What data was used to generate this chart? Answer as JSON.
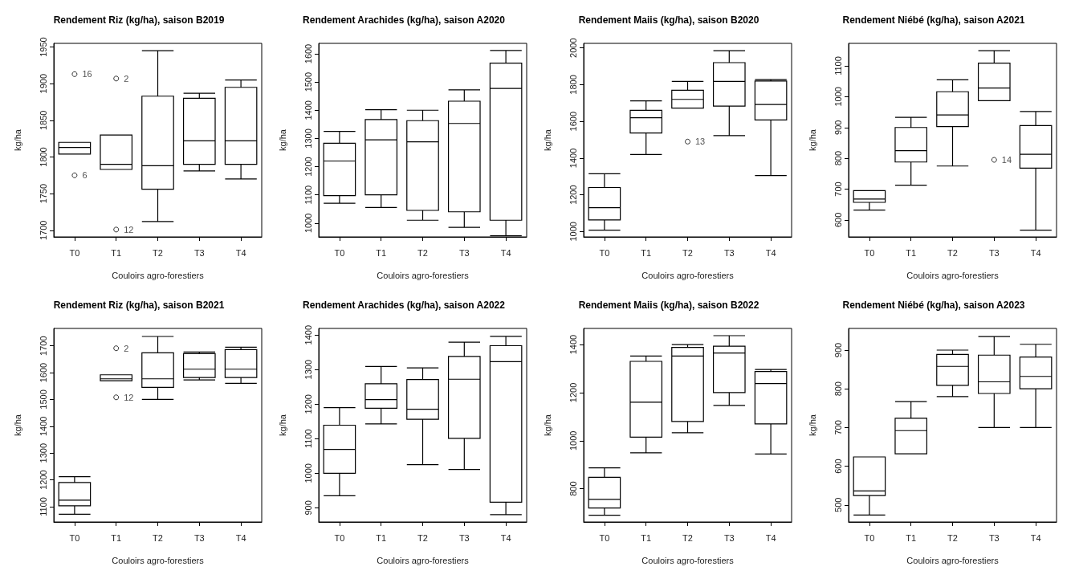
{
  "chart_data": [
    {
      "type": "box",
      "title": "Rendement Riz (kg/ha), saison B2019",
      "xlabel": "Couloirs agro-forestiers",
      "ylabel": "kg/ha",
      "categories": [
        "T0",
        "T1",
        "T2",
        "T3",
        "T4"
      ],
      "ylim": [
        1691,
        1955
      ],
      "yticks": [
        1700,
        1750,
        1800,
        1850,
        1900,
        1950
      ],
      "grid": false,
      "boxes": [
        {
          "low": 1804,
          "q1": 1804,
          "median": 1813,
          "q3": 1820,
          "high": 1820,
          "outliers": [
            1913,
            1775
          ]
        },
        {
          "low": 1783,
          "q1": 1783,
          "median": 1790,
          "q3": 1830,
          "high": 1830,
          "outliers": [
            1907,
            1701
          ]
        },
        {
          "low": 1712,
          "q1": 1756,
          "median": 1788,
          "q3": 1883,
          "high": 1945
        },
        {
          "low": 1781,
          "q1": 1790,
          "median": 1822,
          "q3": 1880,
          "high": 1887
        },
        {
          "low": 1770,
          "q1": 1790,
          "median": 1822,
          "q3": 1895,
          "high": 1905
        }
      ],
      "annotations": [
        "16",
        "6",
        "2",
        "12"
      ]
    },
    {
      "type": "box",
      "title": "Rendement Arachides (kg/ha), saison A2020",
      "xlabel": "Couloirs agro-forestiers",
      "ylabel": "kg/ha",
      "categories": [
        "T0",
        "T1",
        "T2",
        "T3",
        "T4"
      ],
      "ylim": [
        951,
        1637
      ],
      "yticks": [
        1000,
        1100,
        1200,
        1300,
        1400,
        1500,
        1600
      ],
      "grid": false,
      "boxes": [
        {
          "low": 1070,
          "q1": 1097,
          "median": 1220,
          "q3": 1283,
          "high": 1325
        },
        {
          "low": 1055,
          "q1": 1100,
          "median": 1295,
          "q3": 1367,
          "high": 1402
        },
        {
          "low": 1010,
          "q1": 1045,
          "median": 1288,
          "q3": 1363,
          "high": 1400
        },
        {
          "low": 985,
          "q1": 1040,
          "median": 1353,
          "q3": 1432,
          "high": 1472
        },
        {
          "low": 955,
          "q1": 1010,
          "median": 1477,
          "q3": 1567,
          "high": 1612
        }
      ]
    },
    {
      "type": "box",
      "title": "Rendement Maiis (kg/ha), saison B2020",
      "xlabel": "Couloirs agro-forestiers",
      "ylabel": "kg/ha",
      "categories": [
        "T0",
        "T1",
        "T2",
        "T3",
        "T4"
      ],
      "ylim": [
        971,
        2025
      ],
      "yticks": [
        1000,
        1200,
        1400,
        1600,
        1800,
        2000
      ],
      "grid": false,
      "boxes": [
        {
          "low": 1008,
          "q1": 1063,
          "median": 1130,
          "q3": 1240,
          "high": 1315
        },
        {
          "low": 1420,
          "q1": 1537,
          "median": 1620,
          "q3": 1660,
          "high": 1712
        },
        {
          "low": 1672,
          "q1": 1672,
          "median": 1720,
          "q3": 1770,
          "high": 1818,
          "outliers": [
            1490
          ]
        },
        {
          "low": 1523,
          "q1": 1683,
          "median": 1818,
          "q3": 1920,
          "high": 1985
        },
        {
          "low": 1305,
          "q1": 1608,
          "median": 1692,
          "q3": 1820,
          "high": 1828
        }
      ],
      "annotations": [
        "13"
      ]
    },
    {
      "type": "box",
      "title": "Rendement Niébé (kg/ha), saison A2021",
      "xlabel": "Couloirs agro-forestiers",
      "ylabel": "kg/ha",
      "categories": [
        "T0",
        "T1",
        "T2",
        "T3",
        "T4"
      ],
      "ylim": [
        545,
        1173
      ],
      "yticks": [
        600,
        700,
        800,
        900,
        1000,
        1100
      ],
      "grid": false,
      "boxes": [
        {
          "low": 632,
          "q1": 657,
          "median": 668,
          "q3": 695,
          "high": 695
        },
        {
          "low": 713,
          "q1": 788,
          "median": 825,
          "q3": 900,
          "high": 933
        },
        {
          "low": 775,
          "q1": 903,
          "median": 941,
          "q3": 1016,
          "high": 1055
        },
        {
          "low": 987,
          "q1": 987,
          "median": 1028,
          "q3": 1109,
          "high": 1149,
          "outliers": [
            795
          ]
        },
        {
          "low": 567,
          "q1": 768,
          "median": 813,
          "q3": 906,
          "high": 952
        }
      ],
      "annotations": [
        "14"
      ]
    },
    {
      "type": "box",
      "title": "Rendement Riz (kg/ha), saison B2021",
      "xlabel": "Couloirs agro-forestiers",
      "ylabel": "kg/ha",
      "categories": [
        "T0",
        "T1",
        "T2",
        "T3",
        "T4"
      ],
      "ylim": [
        1043,
        1765
      ],
      "yticks": [
        1100,
        1200,
        1300,
        1400,
        1500,
        1600,
        1700
      ],
      "grid": false,
      "boxes": [
        {
          "low": 1072,
          "q1": 1103,
          "median": 1124,
          "q3": 1190,
          "high": 1212
        },
        {
          "low": 1570,
          "q1": 1570,
          "median": 1577,
          "q3": 1592,
          "high": 1592,
          "outliers": [
            1691,
            1508
          ]
        },
        {
          "low": 1500,
          "q1": 1545,
          "median": 1577,
          "q3": 1674,
          "high": 1735
        },
        {
          "low": 1573,
          "q1": 1582,
          "median": 1613,
          "q3": 1671,
          "high": 1677
        },
        {
          "low": 1560,
          "q1": 1582,
          "median": 1613,
          "q3": 1686,
          "high": 1695
        }
      ],
      "annotations": [
        "2",
        "12"
      ]
    },
    {
      "type": "box",
      "title": "Rendement Arachides (kg/ha), saison A2022",
      "xlabel": "Couloirs agro-forestiers",
      "ylabel": "kg/ha",
      "categories": [
        "T0",
        "T1",
        "T2",
        "T3",
        "T4"
      ],
      "ylim": [
        859,
        1419
      ],
      "yticks": [
        900,
        1000,
        1100,
        1200,
        1300,
        1400
      ],
      "grid": false,
      "boxes": [
        {
          "low": 935,
          "q1": 1000,
          "median": 1069,
          "q3": 1139,
          "high": 1190
        },
        {
          "low": 1143,
          "q1": 1188,
          "median": 1213,
          "q3": 1259,
          "high": 1309
        },
        {
          "low": 1025,
          "q1": 1156,
          "median": 1185,
          "q3": 1271,
          "high": 1305
        },
        {
          "low": 1011,
          "q1": 1101,
          "median": 1272,
          "q3": 1338,
          "high": 1379
        },
        {
          "low": 880,
          "q1": 916,
          "median": 1323,
          "q3": 1369,
          "high": 1396
        }
      ]
    },
    {
      "type": "box",
      "title": "Rendement Maiis (kg/ha), saison B2022",
      "xlabel": "Couloirs agro-forestiers",
      "ylabel": "kg/ha",
      "categories": [
        "T0",
        "T1",
        "T2",
        "T3",
        "T4"
      ],
      "ylim": [
        662,
        1467
      ],
      "yticks": [
        800,
        1000,
        1200,
        1400
      ],
      "grid": false,
      "boxes": [
        {
          "low": 690,
          "q1": 720,
          "median": 756,
          "q3": 848,
          "high": 887
        },
        {
          "low": 950,
          "q1": 1015,
          "median": 1160,
          "q3": 1330,
          "high": 1352
        },
        {
          "low": 1033,
          "q1": 1080,
          "median": 1352,
          "q3": 1388,
          "high": 1400
        },
        {
          "low": 1147,
          "q1": 1200,
          "median": 1365,
          "q3": 1393,
          "high": 1437
        },
        {
          "low": 945,
          "q1": 1070,
          "median": 1238,
          "q3": 1288,
          "high": 1296
        }
      ]
    },
    {
      "type": "box",
      "title": "Rendement Niébé (kg/ha), saison A2023",
      "xlabel": "Couloirs agro-forestiers",
      "ylabel": "kg/ha",
      "categories": [
        "T0",
        "T1",
        "T2",
        "T3",
        "T4"
      ],
      "ylim": [
        456,
        956
      ],
      "yticks": [
        500,
        600,
        700,
        800,
        900
      ],
      "grid": false,
      "boxes": [
        {
          "low": 474,
          "q1": 524,
          "median": 536,
          "q3": 624,
          "high": 624
        },
        {
          "low": 632,
          "q1": 632,
          "median": 692,
          "q3": 724,
          "high": 767
        },
        {
          "low": 780,
          "q1": 809,
          "median": 858,
          "q3": 889,
          "high": 900
        },
        {
          "low": 700,
          "q1": 788,
          "median": 818,
          "q3": 887,
          "high": 935
        },
        {
          "low": 700,
          "q1": 800,
          "median": 832,
          "q3": 882,
          "high": 915
        }
      ]
    }
  ]
}
